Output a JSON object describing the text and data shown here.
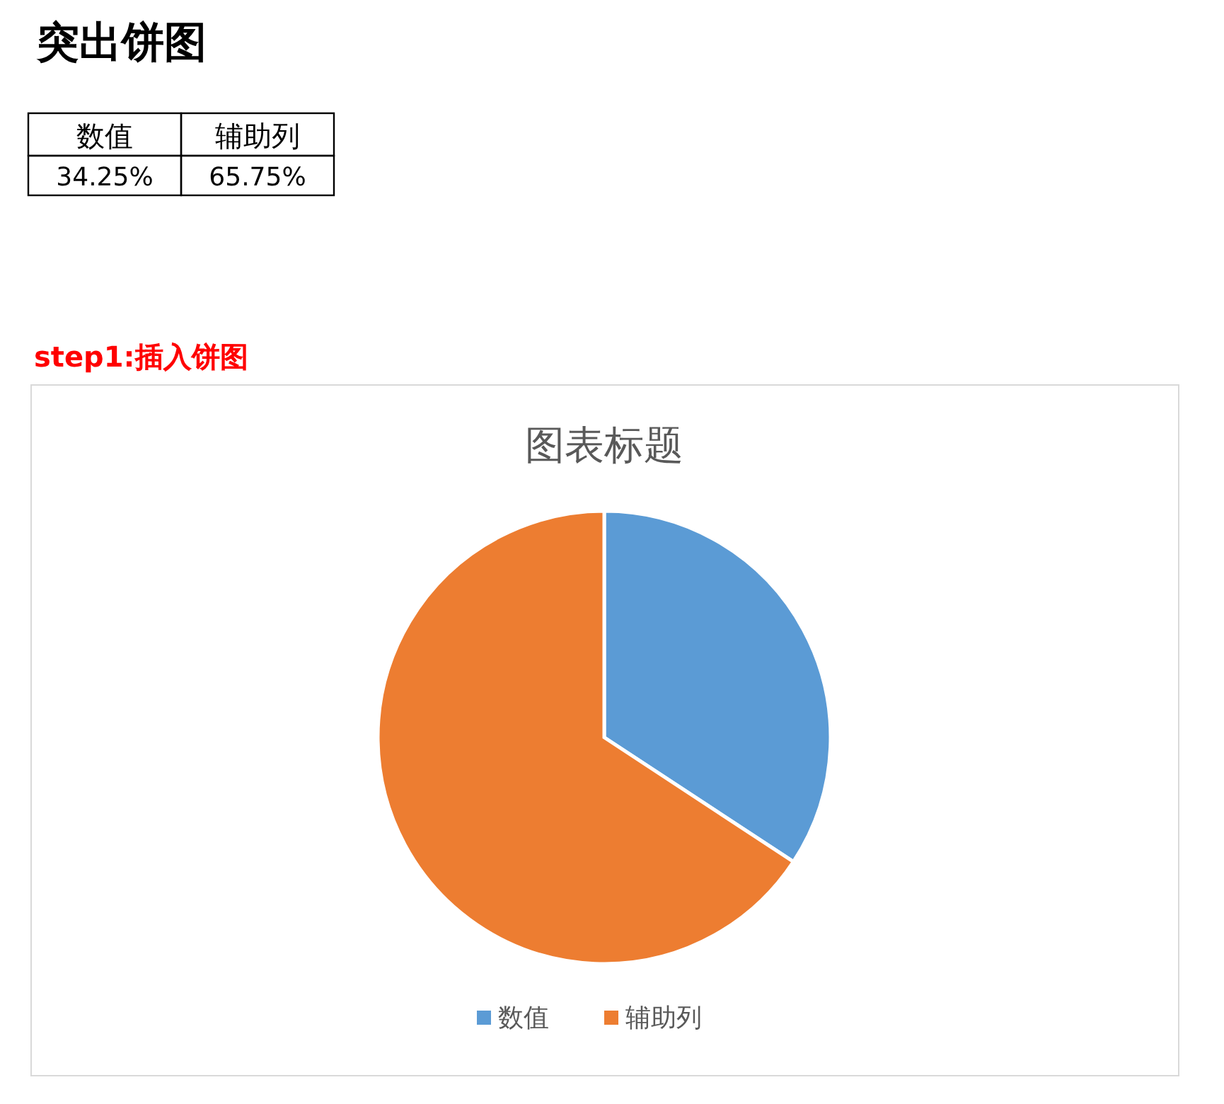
{
  "chart_data": {
    "type": "pie",
    "title": "图表标题",
    "annotations": [
      "突出饼图",
      "step1:插入饼图",
      "34.25%",
      "65.75%"
    ],
    "categories": [
      "数值",
      "辅助列"
    ],
    "values": [
      34.25,
      65.75
    ],
    "colors": [
      "#5b9bd5",
      "#ed7d31"
    ],
    "legend": "bottom"
  }
}
